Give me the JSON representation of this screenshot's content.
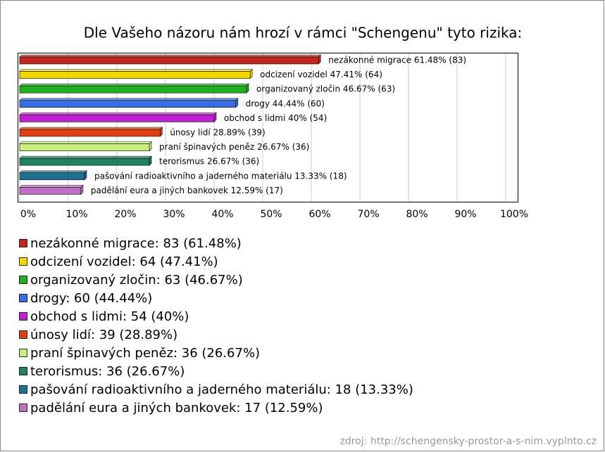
{
  "chart_data": {
    "type": "bar",
    "title": "Dle Vašeho názoru nám hrozí v rámci \"Schengenu\" tyto rizika:",
    "categories": [
      "nezákonné migrace",
      "odcizení vozidel",
      "organizovaný zločin",
      "drogy",
      "obchod s lidmi",
      "únosy lidí",
      "praní špinavých peněz",
      "terorismus",
      "pašování radioaktivního a jaderného materiálu",
      "padělání eura a jiných bankovek"
    ],
    "values": [
      61.48,
      47.41,
      46.67,
      44.44,
      40,
      28.89,
      26.67,
      26.67,
      13.33,
      12.59
    ],
    "value_labels": [
      "nezákonné migrace 61.48% (83)",
      "odcizení vozidel 47.41% (64)",
      "organizovaný zločin 46.67% (63)",
      "drogy 44.44% (60)",
      "obchod s lidmi 40% (54)",
      "únosy lidí 28.89% (39)",
      "praní špinavých peněz 26.67% (36)",
      "terorismus 26.67% (36)",
      "pašování radioaktivního a jaderného materiálu 13.33% (18)",
      "padělání eura a jiných bankovek 12.59% (17)"
    ],
    "legend": [
      "nezákonné migrace: 83 (61.48%)",
      "odcizení vozidel: 64 (47.41%)",
      "organizovaný zločin: 63 (46.67%)",
      "drogy: 60 (44.44%)",
      "obchod s lidmi: 54 (40%)",
      "únosy lidí: 39 (28.89%)",
      "praní špinavých peněz: 36 (26.67%)",
      "terorismus: 36 (26.67%)",
      "pašování radioaktivního a jaderného materiálu: 18 (13.33%)",
      "padělání eura a jiných bankovek: 17 (12.59%)"
    ],
    "colors": [
      "#c0281e",
      "#f0d800",
      "#20b020",
      "#3a6ee0",
      "#c020d0",
      "#e04010",
      "#c8f080",
      "#208060",
      "#207090",
      "#c070c0"
    ],
    "xlim": [
      0,
      100
    ],
    "xticks": [
      {
        "value": 0,
        "label": "0%"
      },
      {
        "value": 10,
        "label": "10%"
      },
      {
        "value": 20,
        "label": "20%"
      },
      {
        "value": 30,
        "label": "30%"
      },
      {
        "value": 40,
        "label": "40%"
      },
      {
        "value": 50,
        "label": "50%"
      },
      {
        "value": 60,
        "label": "60%"
      },
      {
        "value": 70,
        "label": "70%"
      },
      {
        "value": 80,
        "label": "80%"
      },
      {
        "value": 90,
        "label": "90%"
      },
      {
        "value": 100,
        "label": "100%"
      }
    ],
    "grid": true,
    "source": "zdroj: http://schengensky-prostor-a-s-nim.vyplnto.cz"
  }
}
